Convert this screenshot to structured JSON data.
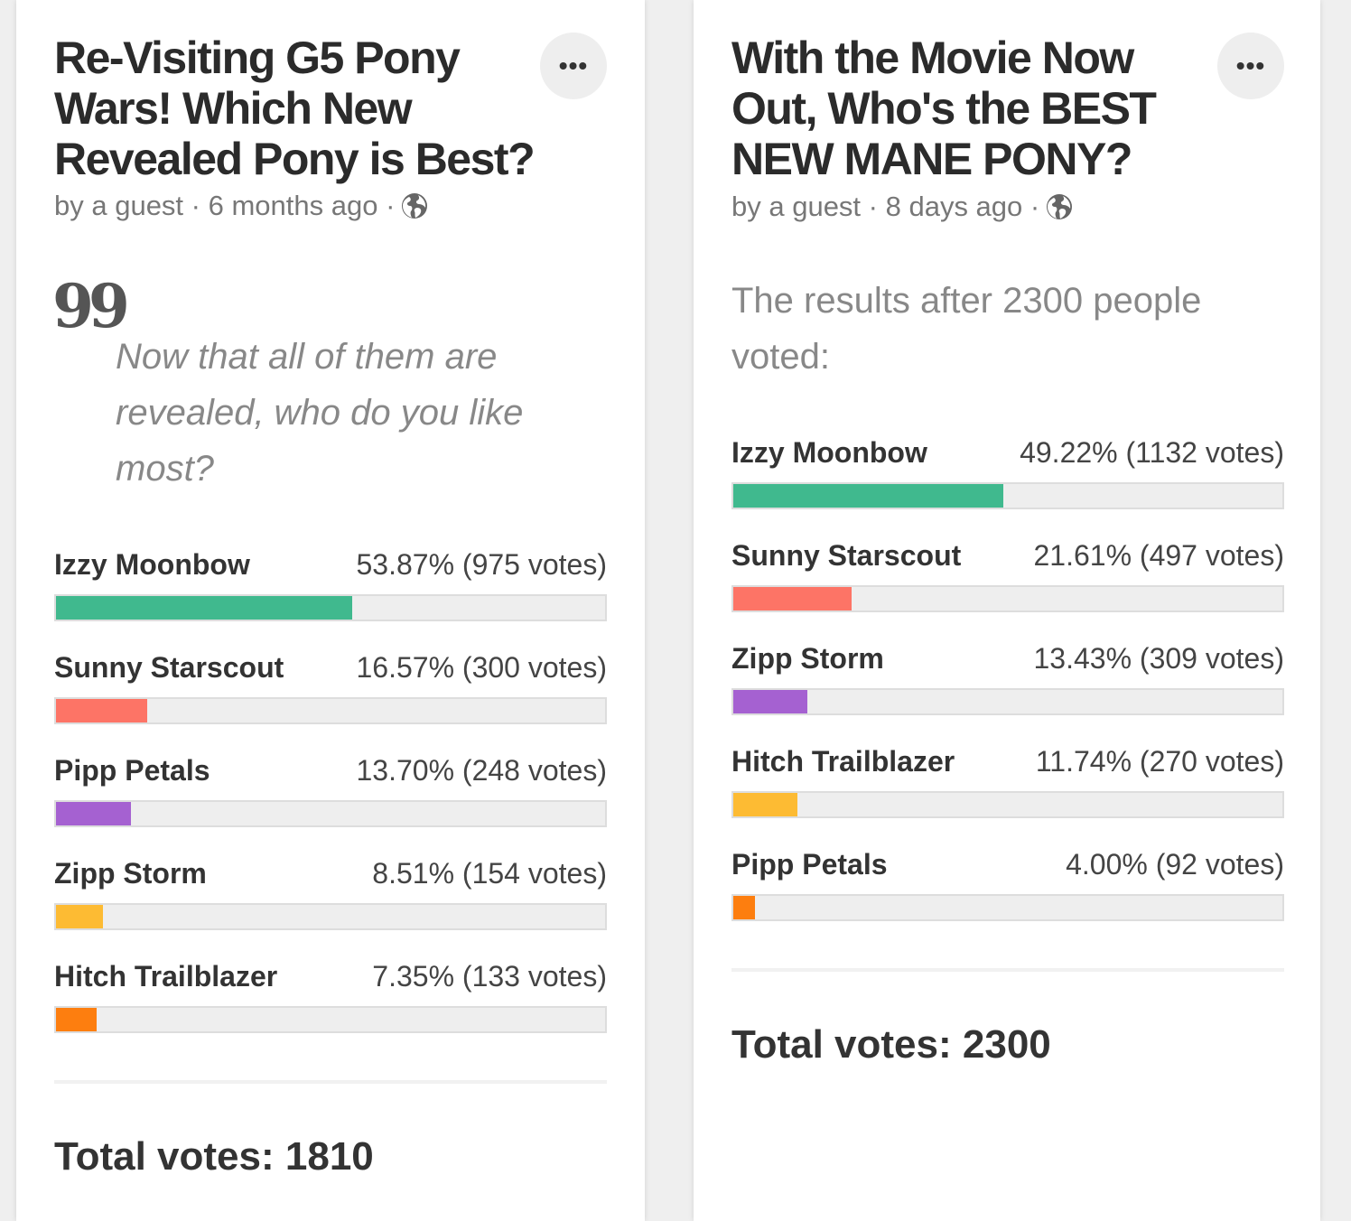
{
  "colors": {
    "option1": "#40b98e",
    "option2": "#fd7466",
    "option3": "#a561d1",
    "option4": "#fdbb33",
    "option5": "#fd7e0f"
  },
  "polls": [
    {
      "title": "Re-Visiting G5 Pony Wars! Which New Revealed Pony is Best?",
      "author": "by a guest",
      "time": "6 months ago",
      "more_label": "•••",
      "quote_mark": "99",
      "description": "Now that all of them are revealed, who do you like most?",
      "options": [
        {
          "name": "Izzy Moonbow",
          "result": "53.87% (975 votes)",
          "percent": 53.87,
          "color": "#40b98e"
        },
        {
          "name": "Sunny Starscout",
          "result": "16.57% (300 votes)",
          "percent": 16.57,
          "color": "#fd7466"
        },
        {
          "name": "Pipp Petals",
          "result": "13.70% (248 votes)",
          "percent": 13.7,
          "color": "#a561d1"
        },
        {
          "name": "Zipp Storm",
          "result": "8.51% (154 votes)",
          "percent": 8.51,
          "color": "#fdbb33"
        },
        {
          "name": "Hitch Trailblazer",
          "result": "7.35% (133 votes)",
          "percent": 7.35,
          "color": "#fd7e0f"
        }
      ],
      "total": "Total votes: 1810"
    },
    {
      "title": "With the Movie Now Out, Who's the BEST NEW MANE PONY?",
      "author": "by a guest",
      "time": "8 days ago",
      "more_label": "•••",
      "description": "The results after 2300 people voted:",
      "options": [
        {
          "name": "Izzy Moonbow",
          "result": "49.22% (1132 votes)",
          "percent": 49.22,
          "color": "#40b98e"
        },
        {
          "name": "Sunny Starscout",
          "result": "21.61% (497 votes)",
          "percent": 21.61,
          "color": "#fd7466"
        },
        {
          "name": "Zipp Storm",
          "result": "13.43% (309 votes)",
          "percent": 13.43,
          "color": "#a561d1"
        },
        {
          "name": "Hitch Trailblazer",
          "result": "11.74% (270 votes)",
          "percent": 11.74,
          "color": "#fdbb33"
        },
        {
          "name": "Pipp Petals",
          "result": "4.00% (92 votes)",
          "percent": 4.0,
          "color": "#fd7e0f"
        }
      ],
      "total": "Total votes: 2300"
    }
  ]
}
